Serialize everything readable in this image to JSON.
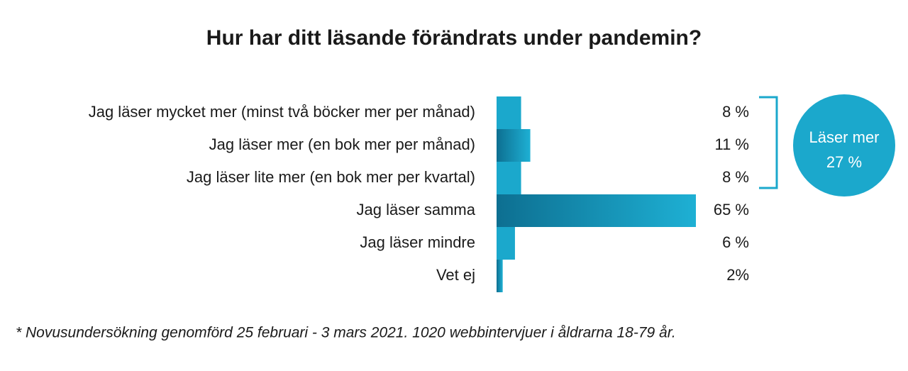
{
  "chart_data": {
    "type": "bar",
    "orientation": "horizontal",
    "title": "Hur har ditt läsande förändrats under pandemin?",
    "categories": [
      "Jag läser mycket mer (minst två böcker mer per månad)",
      "Jag läser mer (en bok mer per månad)",
      "Jag läser lite mer (en bok mer per kvartal)",
      "Jag läser samma",
      "Jag läser mindre",
      "Vet ej"
    ],
    "values": [
      8,
      11,
      8,
      65,
      6,
      2
    ],
    "value_labels": [
      "8 %",
      "11 %",
      "8 %",
      "65 %",
      "6 %",
      "2%"
    ],
    "colors": [
      "#1ba8cc",
      "#137fa3",
      "#1ba8cc",
      "#137fa3",
      "#1ba8cc",
      "#137fa3"
    ],
    "annotation": {
      "lines": [
        "Läser mer",
        "27 %"
      ],
      "color": "#1ba8cc"
    },
    "footnote": "* Novusundersökning genomförd 25 februari - 3 mars 2021. 1020 webbintervjuer i åldrarna 18-79 år."
  }
}
